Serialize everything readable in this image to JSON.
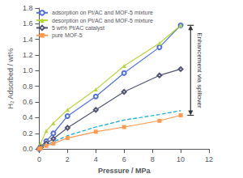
{
  "chart_data": {
    "type": "line",
    "xlabel": "Pressure / MPa",
    "ylabel": "H₂ Adsorbed / wt%",
    "xlim": [
      0,
      12.0
    ],
    "ylim": [
      0,
      1.8
    ],
    "xticks": [
      0,
      2,
      4,
      6,
      8,
      10,
      12
    ],
    "yticks": [
      {
        "value": 0,
        "label": "0.0"
      },
      0.2,
      0.4,
      0.6,
      0.8,
      {
        "value": 1.0,
        "label": "1.0"
      },
      1.2,
      1.4,
      1.6,
      1.8
    ],
    "grid": false,
    "legend": "upper left",
    "series": [
      {
        "name": "adsorption on Pt/AC and MOF-5 mixture",
        "marker": "circle",
        "line_style": "solid",
        "x": [
          0.0,
          0.1,
          0.5,
          1.0,
          2.0,
          4.0,
          6.0,
          8.5,
          10.0
        ],
        "values": [
          0.0,
          0.03,
          0.1,
          0.2,
          0.42,
          0.67,
          0.97,
          1.3,
          1.58
        ]
      },
      {
        "name": "desorption on Pt/AC and MOF-5 mixture",
        "marker": "triangle",
        "line_style": "solid",
        "x": [
          0.0,
          0.1,
          0.5,
          1.0,
          2.0,
          4.0,
          6.0,
          8.5,
          10.0
        ],
        "values": [
          0.0,
          0.07,
          0.23,
          0.33,
          0.5,
          0.76,
          1.06,
          1.35,
          1.58
        ]
      },
      {
        "name": "5 wt% Pt/AC catalyst",
        "marker": "diamond",
        "line_style": "solid",
        "x": [
          0.0,
          0.1,
          0.5,
          1.0,
          2.0,
          4.0,
          6.0,
          8.5,
          10.0
        ],
        "values": [
          0.0,
          0.02,
          0.07,
          0.13,
          0.27,
          0.5,
          0.73,
          0.94,
          1.02
        ]
      },
      {
        "name": "pure MOF-5",
        "marker": "square",
        "line_style": "solid",
        "x": [
          0.0,
          0.1,
          0.5,
          1.0,
          2.0,
          4.0,
          6.0,
          8.5,
          10.0
        ],
        "values": [
          0.0,
          0.01,
          0.04,
          0.07,
          0.14,
          0.22,
          0.28,
          0.36,
          0.43
        ]
      },
      {
        "marker": "none",
        "line_style": "dashed",
        "x": [
          0.0,
          0.5,
          1.0,
          2.0,
          4.0,
          6.0,
          8.5,
          10.0
        ],
        "values": [
          0.0,
          0.05,
          0.09,
          0.17,
          0.28,
          0.37,
          0.44,
          0.49
        ]
      }
    ],
    "annotation": {
      "text": "Enhancement via spillover",
      "x": 10.7,
      "y_top": 1.58,
      "y_bottom": 0.43
    }
  }
}
